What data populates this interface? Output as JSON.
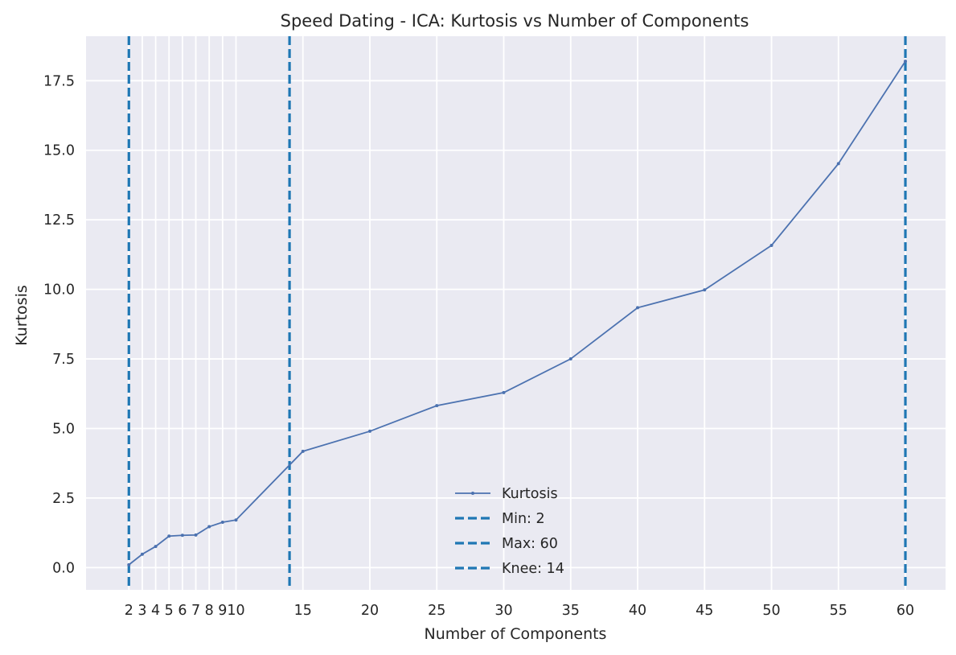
{
  "chart_data": {
    "type": "line",
    "title": "Speed Dating - ICA: Kurtosis vs Number of Components",
    "xlabel": "Number of Components",
    "ylabel": "Kurtosis",
    "x_ticks": [
      2,
      3,
      4,
      5,
      6,
      7,
      8,
      9,
      10,
      15,
      20,
      25,
      30,
      35,
      40,
      45,
      50,
      55,
      60
    ],
    "x_tick_labels": [
      "2",
      "3",
      "4",
      "5",
      "6",
      "7",
      "8",
      "9",
      "10",
      "15",
      "20",
      "25",
      "30",
      "35",
      "40",
      "45",
      "50",
      "55",
      "60"
    ],
    "y_ticks": [
      0.0,
      2.5,
      5.0,
      7.5,
      10.0,
      12.5,
      15.0,
      17.5
    ],
    "y_tick_labels": [
      "0.0",
      "2.5",
      "5.0",
      "7.5",
      "10.0",
      "12.5",
      "15.0",
      "17.5"
    ],
    "xlim": [
      -1.2,
      63.0
    ],
    "ylim": [
      -0.8,
      19.1
    ],
    "grid": true,
    "legend_position": "lower-center",
    "series": [
      {
        "name": "Kurtosis",
        "color": "#4c72b0",
        "x": [
          2,
          3,
          4,
          5,
          6,
          7,
          8,
          9,
          10,
          15,
          20,
          25,
          30,
          35,
          40,
          45,
          50,
          55,
          60
        ],
        "y": [
          0.1,
          0.48,
          0.76,
          1.13,
          1.16,
          1.17,
          1.47,
          1.63,
          1.71,
          4.18,
          4.9,
          5.82,
          6.29,
          7.5,
          9.34,
          9.98,
          11.58,
          14.52,
          18.2
        ]
      }
    ],
    "vlines": [
      {
        "label": "Min: 2",
        "x": 2,
        "color": "#1f77b4",
        "style": "dashed"
      },
      {
        "label": "Max: 60",
        "x": 60,
        "color": "#1f77b4",
        "style": "dashed"
      },
      {
        "label": "Knee: 14",
        "x": 14,
        "color": "#1f77b4",
        "style": "dashed"
      }
    ],
    "background_color": "#eaeaf2",
    "grid_color": "#ffffff"
  }
}
